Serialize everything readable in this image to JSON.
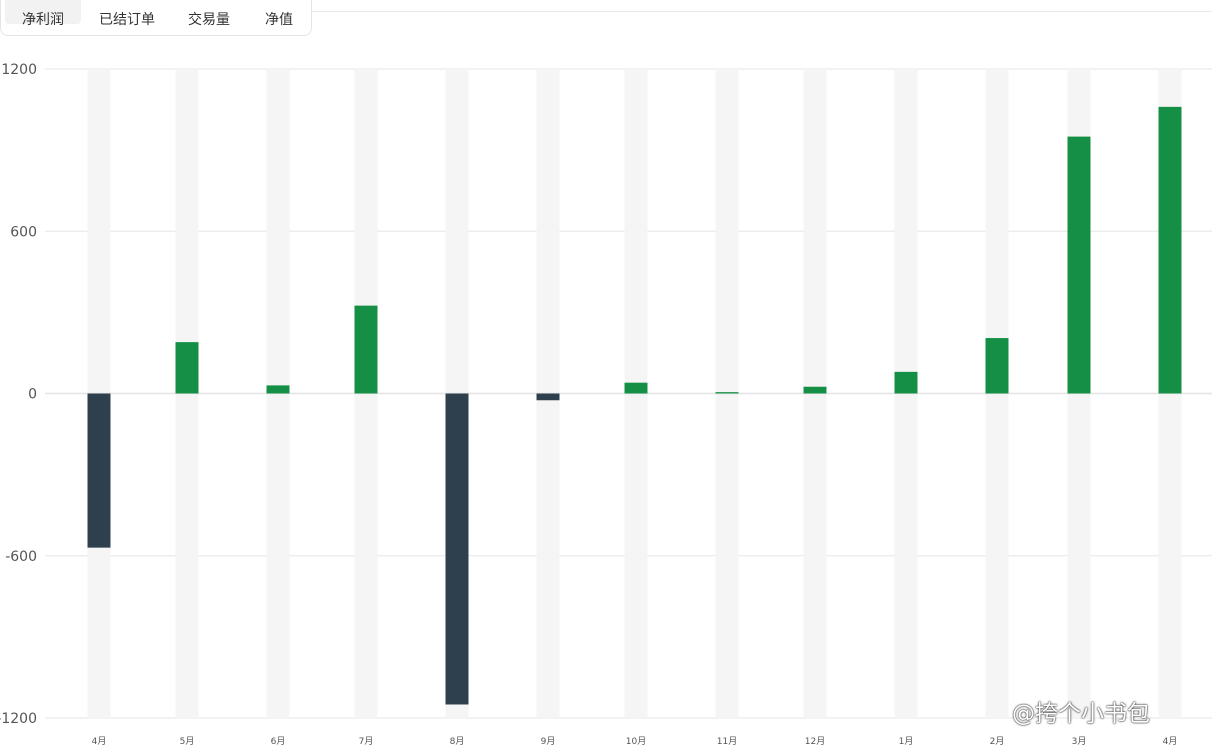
{
  "tabs": [
    {
      "label": "净利润",
      "active": true
    },
    {
      "label": "已结订单",
      "active": false
    },
    {
      "label": "交易量",
      "active": false
    },
    {
      "label": "净值",
      "active": false
    }
  ],
  "chart_data": {
    "type": "bar",
    "categories": [
      "4月",
      "5月",
      "6月",
      "7月",
      "8月",
      "9月",
      "10月",
      "11月",
      "12月",
      "1月",
      "2月",
      "3月",
      "4月"
    ],
    "values": [
      -570,
      190,
      30,
      325,
      -1150,
      -25,
      40,
      5,
      25,
      80,
      205,
      950,
      1060
    ],
    "ylim": [
      -1200,
      1200
    ],
    "yticks": [
      1200,
      600,
      0,
      -600,
      -1200
    ],
    "grid": true,
    "colors": {
      "positive": "#148f45",
      "negative": "#2e404d",
      "track": "#f5f5f5",
      "grid": "#e6e6e6"
    }
  },
  "watermark": "@挎个小书包"
}
